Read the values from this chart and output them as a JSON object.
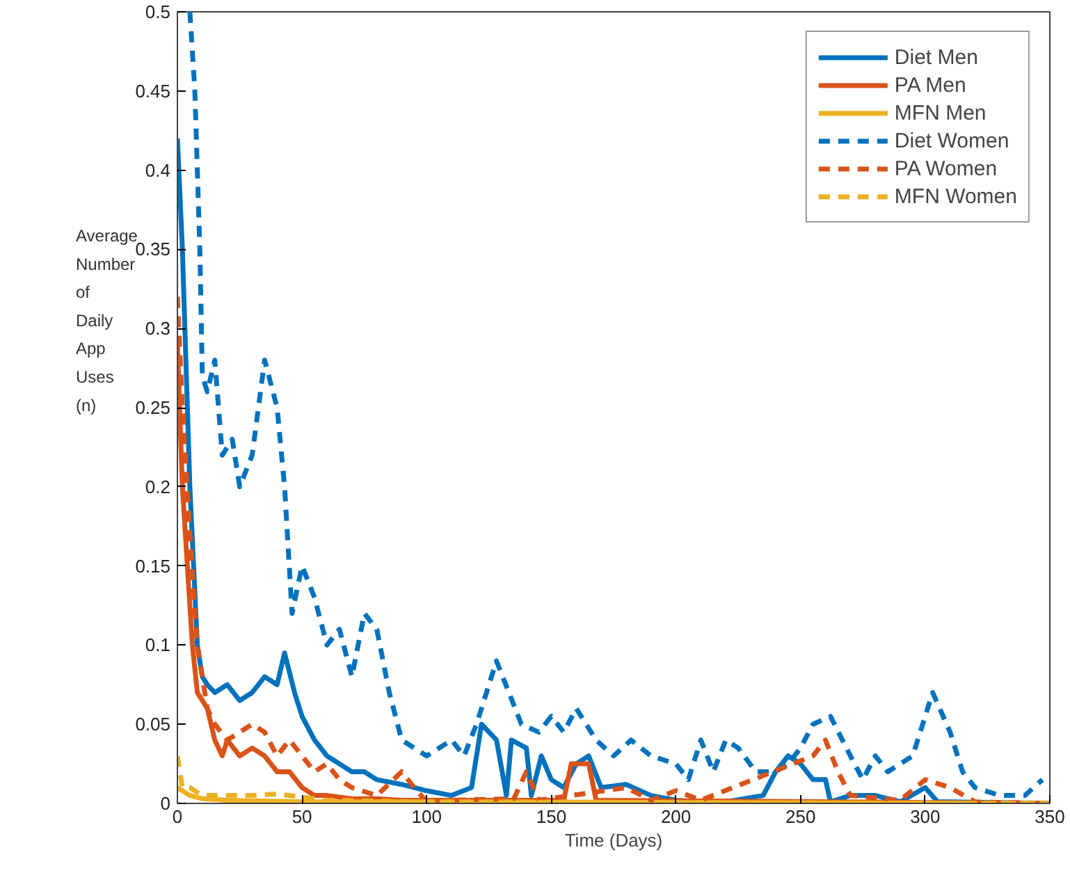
{
  "chart_data": {
    "type": "line",
    "xlabel": "Time (Days)",
    "ylabel": "Average\nNumber\nof\nDaily\nApp\nUses\n(n)",
    "xlim": [
      0,
      350
    ],
    "ylim": [
      0,
      0.5
    ],
    "xticks": [
      0,
      50,
      100,
      150,
      200,
      250,
      300,
      350
    ],
    "yticks": [
      0,
      0.05,
      0.1,
      0.15,
      0.2,
      0.25,
      0.3,
      0.35,
      0.4,
      0.45,
      0.5
    ],
    "grid": false,
    "legend": "top right",
    "marker": "none",
    "series": [
      {
        "name": "Diet Men",
        "color": "#0072bd",
        "line_style": "solid",
        "x": [
          0,
          2,
          5,
          8,
          10,
          12,
          15,
          20,
          25,
          30,
          35,
          40,
          43,
          47,
          50,
          55,
          60,
          65,
          70,
          75,
          80,
          90,
          100,
          110,
          118,
          122,
          128,
          132,
          134,
          140,
          142,
          146,
          150,
          155,
          160,
          165,
          170,
          180,
          190,
          200,
          210,
          220,
          235,
          240,
          245,
          250,
          255,
          260,
          262,
          270,
          280,
          290,
          300,
          305,
          310,
          350
        ],
        "values": [
          0.42,
          0.35,
          0.2,
          0.1,
          0.08,
          0.075,
          0.07,
          0.075,
          0.065,
          0.07,
          0.08,
          0.075,
          0.095,
          0.07,
          0.055,
          0.04,
          0.03,
          0.025,
          0.02,
          0.02,
          0.015,
          0.012,
          0.008,
          0.005,
          0.01,
          0.05,
          0.04,
          0.005,
          0.04,
          0.035,
          0.005,
          0.03,
          0.015,
          0.01,
          0.025,
          0.03,
          0.01,
          0.012,
          0.005,
          0.002,
          0.001,
          0.001,
          0.005,
          0.02,
          0.03,
          0.025,
          0.015,
          0.015,
          0.001,
          0.005,
          0.005,
          0.001,
          0.01,
          0.001,
          0.001,
          0
        ]
      },
      {
        "name": "PA Men",
        "color": "#d95319",
        "line_style": "solid",
        "x": [
          0,
          2,
          4,
          6,
          8,
          12,
          15,
          18,
          20,
          25,
          30,
          35,
          40,
          45,
          50,
          55,
          60,
          70,
          80,
          90,
          100,
          130,
          155,
          158,
          165,
          168,
          350
        ],
        "values": [
          0.29,
          0.2,
          0.15,
          0.1,
          0.07,
          0.06,
          0.04,
          0.03,
          0.04,
          0.03,
          0.035,
          0.03,
          0.02,
          0.02,
          0.01,
          0.005,
          0.005,
          0.003,
          0.003,
          0.002,
          0.002,
          0.002,
          0.002,
          0.025,
          0.025,
          0.002,
          0
        ]
      },
      {
        "name": "MFN Men",
        "color": "#edb120",
        "line_style": "solid",
        "x": [
          0,
          5,
          10,
          20,
          50,
          100,
          350
        ],
        "values": [
          0.01,
          0.005,
          0.003,
          0.002,
          0.001,
          0.001,
          0
        ]
      },
      {
        "name": "Diet Women",
        "color": "#0072bd",
        "line_style": "dashed",
        "x": [
          5,
          7,
          9,
          10,
          12,
          15,
          18,
          22,
          25,
          30,
          35,
          40,
          43,
          46,
          50,
          55,
          60,
          65,
          70,
          75,
          80,
          85,
          90,
          100,
          110,
          115,
          120,
          128,
          133,
          138,
          145,
          150,
          155,
          160,
          168,
          175,
          182,
          190,
          200,
          205,
          210,
          215,
          220,
          225,
          232,
          240,
          245,
          250,
          255,
          262,
          270,
          275,
          280,
          285,
          295,
          303,
          310,
          315,
          320,
          330,
          340,
          347
        ],
        "values": [
          0.5,
          0.45,
          0.35,
          0.27,
          0.26,
          0.28,
          0.22,
          0.23,
          0.2,
          0.22,
          0.28,
          0.25,
          0.2,
          0.12,
          0.15,
          0.13,
          0.1,
          0.11,
          0.08,
          0.12,
          0.11,
          0.07,
          0.04,
          0.03,
          0.04,
          0.03,
          0.05,
          0.09,
          0.07,
          0.05,
          0.045,
          0.055,
          0.045,
          0.06,
          0.04,
          0.03,
          0.04,
          0.03,
          0.025,
          0.015,
          0.04,
          0.02,
          0.04,
          0.035,
          0.02,
          0.02,
          0.025,
          0.035,
          0.05,
          0.055,
          0.03,
          0.015,
          0.03,
          0.02,
          0.03,
          0.07,
          0.045,
          0.02,
          0.01,
          0.005,
          0.005,
          0.015
        ]
      },
      {
        "name": "PA Women",
        "color": "#d95319",
        "line_style": "dashed",
        "x": [
          0,
          2,
          5,
          8,
          12,
          15,
          20,
          25,
          30,
          35,
          40,
          45,
          50,
          55,
          60,
          65,
          70,
          80,
          90,
          95,
          100,
          110,
          135,
          140,
          145,
          180,
          190,
          200,
          210,
          255,
          260,
          265,
          270,
          290,
          300,
          310,
          320,
          350
        ],
        "values": [
          0.32,
          0.25,
          0.17,
          0.1,
          0.06,
          0.05,
          0.04,
          0.045,
          0.05,
          0.045,
          0.03,
          0.04,
          0.03,
          0.02,
          0.025,
          0.015,
          0.01,
          0.005,
          0.02,
          0.01,
          0.001,
          0.002,
          0.003,
          0.02,
          0.002,
          0.01,
          0.002,
          0.008,
          0.002,
          0.03,
          0.04,
          0.02,
          0.005,
          0.002,
          0.015,
          0.01,
          0.001,
          0
        ]
      },
      {
        "name": "MFN Women",
        "color": "#edb120",
        "line_style": "dashed",
        "x": [
          0,
          2,
          5,
          10,
          20,
          30,
          40,
          60,
          100,
          350
        ],
        "values": [
          0.03,
          0.01,
          0.01,
          0.005,
          0.005,
          0.005,
          0.006,
          0.002,
          0.001,
          0
        ]
      }
    ]
  }
}
